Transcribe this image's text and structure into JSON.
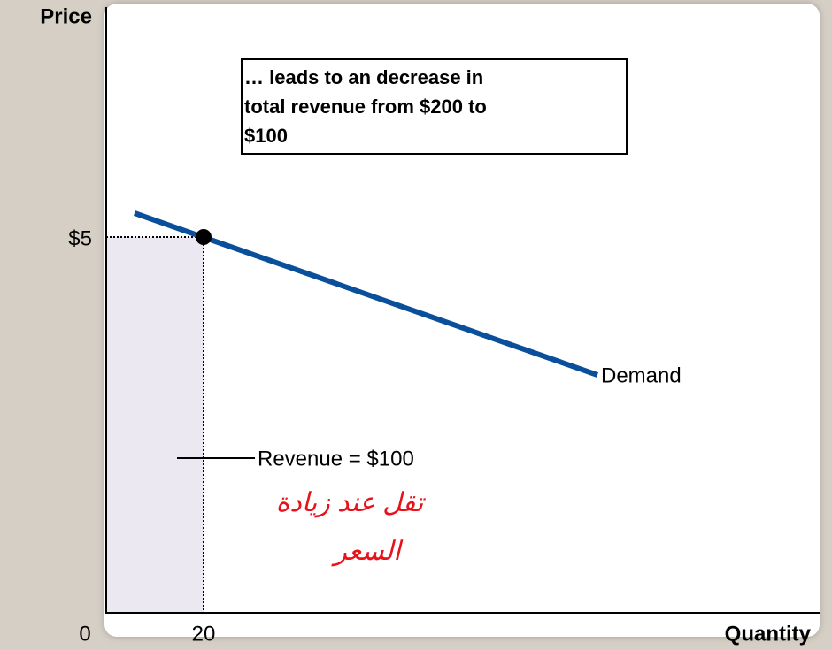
{
  "y_axis_label": "Price",
  "x_axis_label": "Quantity",
  "origin_label": "0",
  "price_label": "$5",
  "quantity_label": "20",
  "curve_label": "Demand",
  "callout": [
    "… leads to an decrease in",
    "total revenue from $200 to",
    "$100"
  ],
  "revenue_label": "Revenue = $100",
  "handwriting": [
    "تقل عند زيادة",
    "السعر"
  ]
}
